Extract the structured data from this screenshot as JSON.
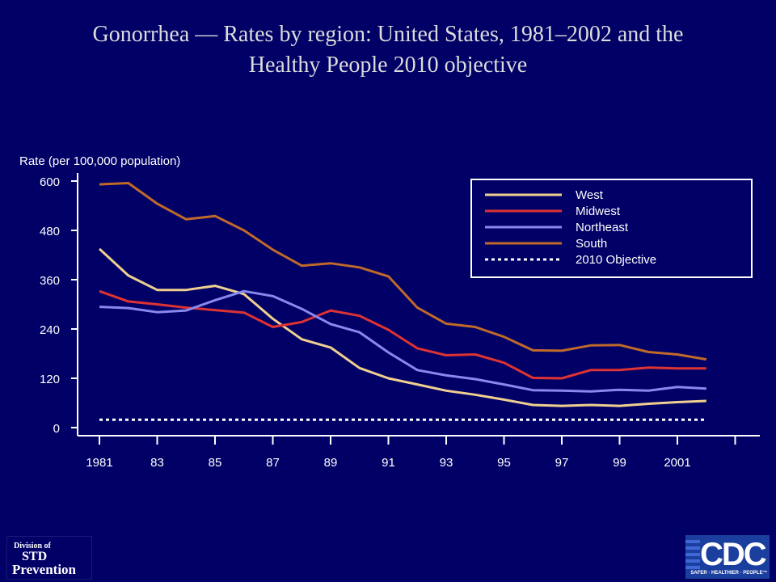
{
  "title_line1": "Gonorrhea — Rates by region: United States, 1981–2002 and the",
  "title_line2": "Healthy People 2010 objective",
  "logos": {
    "std_line1": "Division of",
    "std_line2": "STD",
    "std_line3": "Prevention",
    "cdc_text": "CDC",
    "cdc_tagline": "SAFER · HEALTHIER · PEOPLE™"
  },
  "chart_data": {
    "type": "line",
    "title": "Gonorrhea — Rates by region: United States, 1981–2002 and the Healthy People 2010 objective",
    "ylabel": "Rate (per 100,000 population)",
    "xlabel": "",
    "ylim": [
      0,
      600
    ],
    "yticks": [
      0,
      120,
      240,
      360,
      480,
      600
    ],
    "xlim": [
      1981,
      2003
    ],
    "x_tick_labels": [
      "1981",
      "83",
      "85",
      "87",
      "89",
      "91",
      "93",
      "95",
      "97",
      "99",
      "2001"
    ],
    "x": [
      1981,
      1982,
      1983,
      1984,
      1985,
      1986,
      1987,
      1988,
      1989,
      1990,
      1991,
      1992,
      1993,
      1994,
      1995,
      1996,
      1997,
      1998,
      1999,
      2000,
      2001,
      2002
    ],
    "legend_position": "top-right",
    "grid": false,
    "series": [
      {
        "name": "West",
        "color": "#f0d090",
        "style": "solid",
        "values": [
          435,
          370,
          335,
          335,
          345,
          325,
          265,
          215,
          195,
          145,
          120,
          105,
          90,
          80,
          68,
          55,
          53,
          55,
          53,
          58,
          62,
          65
        ]
      },
      {
        "name": "Midwest",
        "color": "#dd3333",
        "style": "solid",
        "values": [
          332,
          307,
          300,
          292,
          286,
          280,
          245,
          257,
          285,
          272,
          238,
          193,
          176,
          178,
          158,
          121,
          120,
          140,
          140,
          146,
          144,
          144
        ]
      },
      {
        "name": "Northeast",
        "color": "#8888ee",
        "style": "solid",
        "values": [
          294,
          291,
          281,
          285,
          310,
          332,
          320,
          289,
          252,
          232,
          183,
          140,
          127,
          118,
          105,
          91,
          90,
          88,
          92,
          90,
          99,
          95
        ]
      },
      {
        "name": "South",
        "color": "#c06a2a",
        "style": "solid",
        "values": [
          592,
          595,
          545,
          507,
          515,
          480,
          433,
          394,
          400,
          390,
          368,
          292,
          253,
          245,
          221,
          188,
          187,
          200,
          201,
          184,
          178,
          166
        ]
      },
      {
        "name": "2010 Objective",
        "color": "#ffffff",
        "style": "dotted",
        "values": [
          19,
          19,
          19,
          19,
          19,
          19,
          19,
          19,
          19,
          19,
          19,
          19,
          19,
          19,
          19,
          19,
          19,
          19,
          19,
          19,
          19,
          19
        ]
      }
    ]
  }
}
